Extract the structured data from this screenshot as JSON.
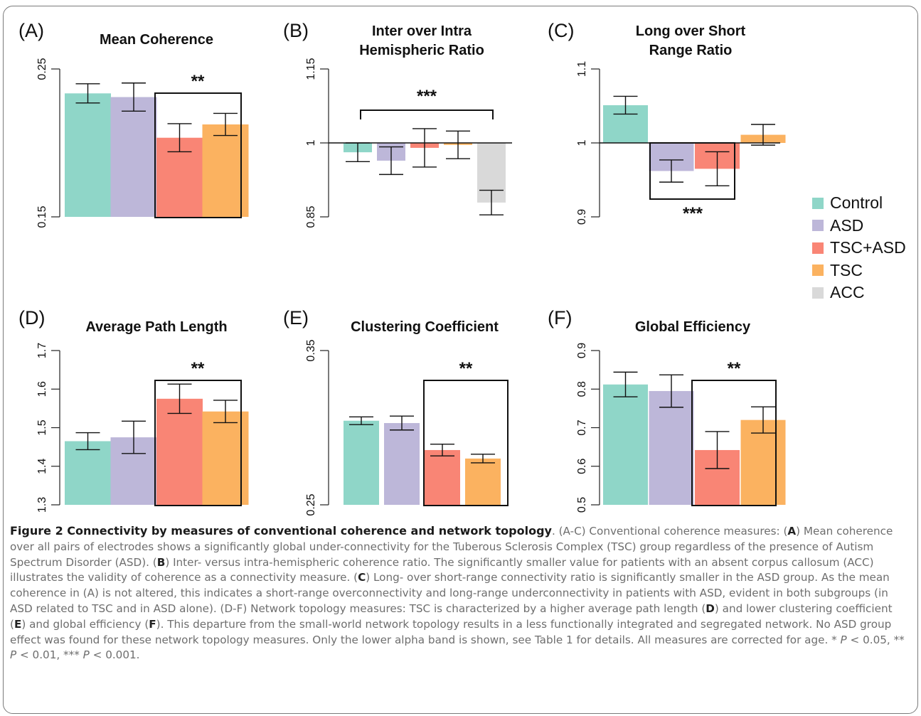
{
  "legend": [
    {
      "label": "Control",
      "color": "#8fd6c8"
    },
    {
      "label": "ASD",
      "color": "#bdb7d9"
    },
    {
      "label": "TSC+ASD",
      "color": "#f98575"
    },
    {
      "label": "TSC",
      "color": "#fbb260"
    },
    {
      "label": "ACC",
      "color": "#d9d9d9"
    }
  ],
  "chart_data": [
    {
      "type": "bar",
      "letter": "(A)",
      "title": [
        "Mean Coherence"
      ],
      "ylim": [
        0.15,
        0.25
      ],
      "yticks": [
        0.15,
        0.25
      ],
      "ytick_labels": [
        "0.15",
        "0.25"
      ],
      "categories": [
        "Control",
        "ASD",
        "TSC+ASD",
        "TSC"
      ],
      "values": [
        0.2335,
        0.231,
        0.2035,
        0.2125
      ],
      "err": [
        0.0065,
        0.0095,
        0.0095,
        0.0075
      ],
      "significance": {
        "label": "**",
        "style": "box",
        "groups": [
          2,
          3
        ]
      }
    },
    {
      "type": "bar",
      "letter": "(B)",
      "title": [
        "Inter over Intra",
        "Hemispheric Ratio"
      ],
      "ylim": [
        0.85,
        1.15
      ],
      "yticks": [
        0.85,
        1.0,
        1.15
      ],
      "ytick_labels": [
        "0.85",
        "1",
        "1.15"
      ],
      "baseline": 1.0,
      "categories": [
        "Control",
        "ASD",
        "TSC+ASD",
        "TSC",
        "ACC"
      ],
      "values": [
        0.981,
        0.964,
        0.99,
        0.996,
        0.879
      ],
      "err": [
        0.019,
        0.028,
        0.039,
        0.028,
        0.025
      ],
      "significance": {
        "label": "***",
        "style": "bracket",
        "groups": [
          0,
          4
        ]
      }
    },
    {
      "type": "bar",
      "letter": "(C)",
      "title": [
        "Long over Short",
        "Range Ratio"
      ],
      "ylim": [
        0.9,
        1.1
      ],
      "yticks": [
        0.9,
        1.0,
        1.1
      ],
      "ytick_labels": [
        "0.9",
        "1",
        "1.1"
      ],
      "baseline": 1.0,
      "categories": [
        "Control",
        "ASD",
        "TSC+ASD",
        "TSC"
      ],
      "values": [
        1.051,
        0.962,
        0.965,
        1.011
      ],
      "err": [
        0.012,
        0.015,
        0.023,
        0.014
      ],
      "significance": {
        "label": "***",
        "style": "box-below",
        "groups": [
          1,
          2
        ]
      }
    },
    {
      "type": "bar",
      "letter": "(D)",
      "title": [
        "Average Path Length"
      ],
      "ylim": [
        1.3,
        1.7
      ],
      "yticks": [
        1.3,
        1.4,
        1.5,
        1.6,
        1.7
      ],
      "ytick_labels": [
        "1.3",
        "1.4",
        "1.5",
        "1.6",
        "1.7"
      ],
      "categories": [
        "Control",
        "ASD",
        "TSC+ASD",
        "TSC"
      ],
      "values": [
        1.465,
        1.475,
        1.575,
        1.542
      ],
      "err": [
        0.022,
        0.042,
        0.038,
        0.029
      ],
      "significance": {
        "label": "**",
        "style": "box",
        "groups": [
          2,
          3
        ]
      }
    },
    {
      "type": "bar",
      "letter": "(E)",
      "title": [
        "Clustering Coefficient"
      ],
      "ylim": [
        0.25,
        0.35
      ],
      "yticks": [
        0.25,
        0.35
      ],
      "ytick_labels": [
        "0.25",
        "0.35"
      ],
      "categories": [
        "Control",
        "ASD",
        "TSC+ASD",
        "TSC"
      ],
      "values": [
        0.3045,
        0.303,
        0.2855,
        0.28
      ],
      "err": [
        0.0025,
        0.0045,
        0.0038,
        0.0028
      ],
      "significance": {
        "label": "**",
        "style": "box",
        "groups": [
          2,
          3
        ]
      }
    },
    {
      "type": "bar",
      "letter": "(F)",
      "title": [
        "Global Efficiency"
      ],
      "ylim": [
        0.5,
        0.9
      ],
      "yticks": [
        0.5,
        0.6,
        0.7,
        0.8,
        0.9
      ],
      "ytick_labels": [
        "0.5",
        "0.6",
        "0.7",
        "0.8",
        "0.9"
      ],
      "categories": [
        "Control",
        "ASD",
        "TSC+ASD",
        "TSC"
      ],
      "values": [
        0.812,
        0.795,
        0.642,
        0.72
      ],
      "err": [
        0.032,
        0.042,
        0.048,
        0.034
      ],
      "significance": {
        "label": "**",
        "style": "box",
        "groups": [
          2,
          3
        ]
      }
    }
  ],
  "caption": {
    "title": "Figure 2 Connectivity by measures of conventional coherence and network topology",
    "s1": ". (A-C) Conventional coherence measures: (",
    "A": "A",
    "s2": ") Mean coherence over all pairs of electrodes shows a significantly global under-connectivity for the Tuberous Sclerosis Complex (TSC) group regardless of the presence of Autism Spectrum Disorder (ASD). (",
    "B": "B",
    "s3": ") Inter- versus intra-hemispheric coherence ratio. The significantly smaller value for patients with an absent corpus callosum (ACC) illustrates the validity of coherence as a connectivity measure. (",
    "C": "C",
    "s4": ") Long- over short-range connectivity ratio is significantly smaller in the ASD group. As the mean coherence in (A) is not altered, this indicates a short-range overconnectivity and long-range underconnectivity in patients with ASD, evident in both subgroups (in ASD related to TSC and in ASD alone). (D-F) Network topology measures: TSC is characterized by a higher average path length (",
    "D": "D",
    "s5": ") and lower clustering coefficient (",
    "E": "E",
    "s6": ") and global efficiency (",
    "F": "F",
    "s7": "). This departure from the small-world network topology results in a less functionally integrated and segregated network. No ASD group effect was found for these network topology measures. Only the lower alpha band is shown, see Table 1 for details. All measures are corrected for age. * ",
    "p1": "P",
    "s8": " < 0.05, ** ",
    "p2": "P",
    "s9": " < 0.01, *** ",
    "p3": "P",
    "s10": " < 0.001."
  }
}
